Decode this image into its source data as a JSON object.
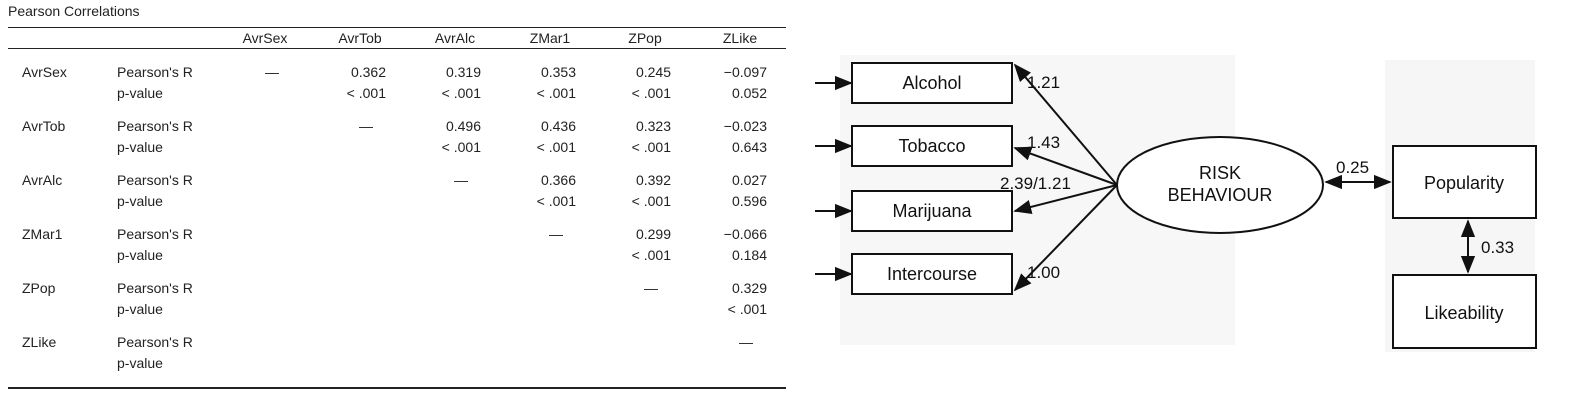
{
  "table": {
    "title": "Pearson Correlations",
    "columns": [
      "AvrSex",
      "AvrTob",
      "AvrAlc",
      "ZMar1",
      "ZPop",
      "ZLike"
    ],
    "stat_labels": [
      "Pearson's R",
      "p-value"
    ],
    "rows": [
      {
        "label": "AvrSex",
        "r": [
          "—",
          "0.362",
          "0.319",
          "0.353",
          "0.245",
          "−0.097"
        ],
        "p": [
          "",
          "< .001",
          "< .001",
          "< .001",
          "< .001",
          "0.052"
        ]
      },
      {
        "label": "AvrTob",
        "r": [
          "",
          "—",
          "0.496",
          "0.436",
          "0.323",
          "−0.023"
        ],
        "p": [
          "",
          "",
          "< .001",
          "< .001",
          "< .001",
          "0.643"
        ]
      },
      {
        "label": "AvrAlc",
        "r": [
          "",
          "",
          "—",
          "0.366",
          "0.392",
          "0.027"
        ],
        "p": [
          "",
          "",
          "",
          "< .001",
          "< .001",
          "0.596"
        ]
      },
      {
        "label": "ZMar1",
        "r": [
          "",
          "",
          "",
          "—",
          "0.299",
          "−0.066"
        ],
        "p": [
          "",
          "",
          "",
          "",
          "< .001",
          "0.184"
        ]
      },
      {
        "label": "ZPop",
        "r": [
          "",
          "",
          "",
          "",
          "—",
          "0.329"
        ],
        "p": [
          "",
          "",
          "",
          "",
          "",
          "< .001"
        ]
      },
      {
        "label": "ZLike",
        "r": [
          "",
          "",
          "",
          "",
          "",
          "—"
        ],
        "p": [
          "",
          "",
          "",
          "",
          "",
          ""
        ]
      }
    ]
  },
  "diagram": {
    "indicators": [
      {
        "name": "Alcohol",
        "loading": "1.21"
      },
      {
        "name": "Tobacco",
        "loading": "1.43"
      },
      {
        "name": "Marijuana",
        "loading": "2.39/1.21"
      },
      {
        "name": "Intercourse",
        "loading": "1.00"
      }
    ],
    "latent": [
      "RISK",
      "BEHAVIOUR"
    ],
    "popularity_label": "Popularity",
    "likeability_label": "Likeability",
    "risk_popularity_coef": "0.25",
    "popularity_likeability_coef": "0.33"
  }
}
